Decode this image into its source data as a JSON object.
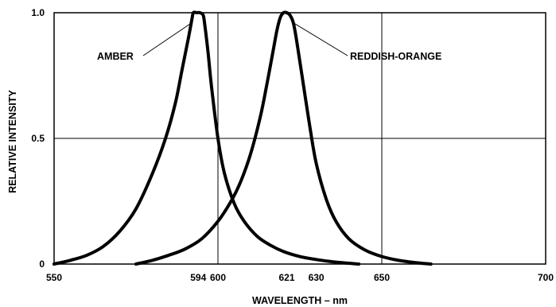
{
  "chart_data": {
    "type": "line",
    "title": "",
    "xlabel": "WAVELENGTH – nm",
    "ylabel": "RELATIVE INTENSITY",
    "xlim": [
      550,
      700
    ],
    "ylim": [
      0,
      1.0
    ],
    "x_ticks": [
      550,
      594,
      600,
      621,
      630,
      650,
      700
    ],
    "y_ticks": [
      {
        "value": 0,
        "label": "0"
      },
      {
        "value": 0.5,
        "label": "0.5"
      },
      {
        "value": 1.0,
        "label": "1.0"
      }
    ],
    "grid": {
      "vertical": [
        600,
        650
      ],
      "horizontal": [
        0.5
      ]
    },
    "series": [
      {
        "name": "AMBER",
        "color": "#000000",
        "x": [
          550,
          555,
          560,
          565,
          570,
          575,
          580,
          584,
          587,
          589,
          591,
          592,
          592.5,
          593.5,
          594.5,
          595.5,
          596,
          597,
          598,
          600,
          602,
          605,
          608,
          612,
          616,
          620,
          625,
          630,
          635,
          640,
          643
        ],
        "y": [
          0,
          0.015,
          0.035,
          0.07,
          0.13,
          0.22,
          0.36,
          0.5,
          0.64,
          0.77,
          0.9,
          0.97,
          1.0,
          1.0,
          1.0,
          0.99,
          0.95,
          0.84,
          0.71,
          0.5,
          0.36,
          0.24,
          0.17,
          0.11,
          0.075,
          0.05,
          0.03,
          0.018,
          0.009,
          0.003,
          0
        ]
      },
      {
        "name": "REDDISH-ORANGE",
        "color": "#000000",
        "x": [
          575,
          580,
          585,
          590,
          595,
          600,
          604,
          607,
          610,
          613,
          615,
          617,
          618,
          619,
          620,
          621,
          622,
          623,
          624,
          626,
          628,
          630,
          633,
          636,
          640,
          645,
          650,
          655,
          660,
          665
        ],
        "y": [
          0,
          0.015,
          0.035,
          0.06,
          0.1,
          0.17,
          0.25,
          0.33,
          0.44,
          0.59,
          0.72,
          0.86,
          0.93,
          0.98,
          1.0,
          1.0,
          0.99,
          0.96,
          0.89,
          0.72,
          0.55,
          0.4,
          0.26,
          0.17,
          0.1,
          0.055,
          0.03,
          0.015,
          0.006,
          0
        ]
      }
    ],
    "annotations": [
      {
        "text": "AMBER",
        "target_series": 0
      },
      {
        "text": "REDDISH-ORANGE",
        "target_series": 1
      }
    ]
  }
}
